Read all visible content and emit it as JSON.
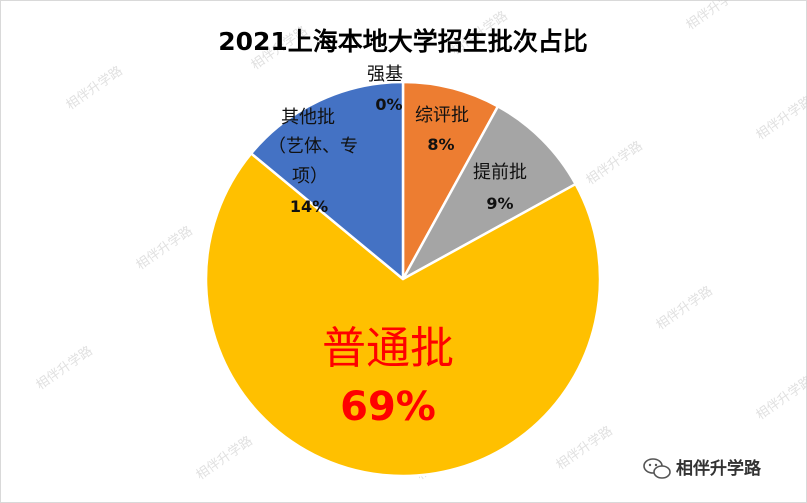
{
  "chart_data": {
    "type": "pie",
    "title": "2021上海本地大学招生批次占比",
    "slices": [
      {
        "label": "强基",
        "value": 0,
        "pct_label": "0%",
        "color": "#ffffff"
      },
      {
        "label": "综评批",
        "value": 8,
        "pct_label": "8%",
        "color": "#ed7d31"
      },
      {
        "label": "提前批",
        "value": 9,
        "pct_label": "9%",
        "color": "#a5a5a5"
      },
      {
        "label": "普通批",
        "value": 69,
        "pct_label": "69%",
        "color": "#ffc000"
      },
      {
        "label": "其他批（艺体、专项）",
        "value": 14,
        "pct_label": "14%",
        "color": "#4472c4"
      }
    ]
  },
  "labels": {
    "qiangji": "强基",
    "qiangji_pct": "0%",
    "zongping": "综评批",
    "zongping_pct": "8%",
    "tiqian": "提前批",
    "tiqian_pct": "9%",
    "putong": "普通批",
    "putong_pct": "69%",
    "other_l1": "其他批",
    "other_l2": "（艺体、专",
    "other_l3": "项）",
    "other_pct": "14%"
  },
  "watermark": "相伴升学路",
  "footer": {
    "icon": "wechat-icon",
    "text": "相伴升学路"
  }
}
